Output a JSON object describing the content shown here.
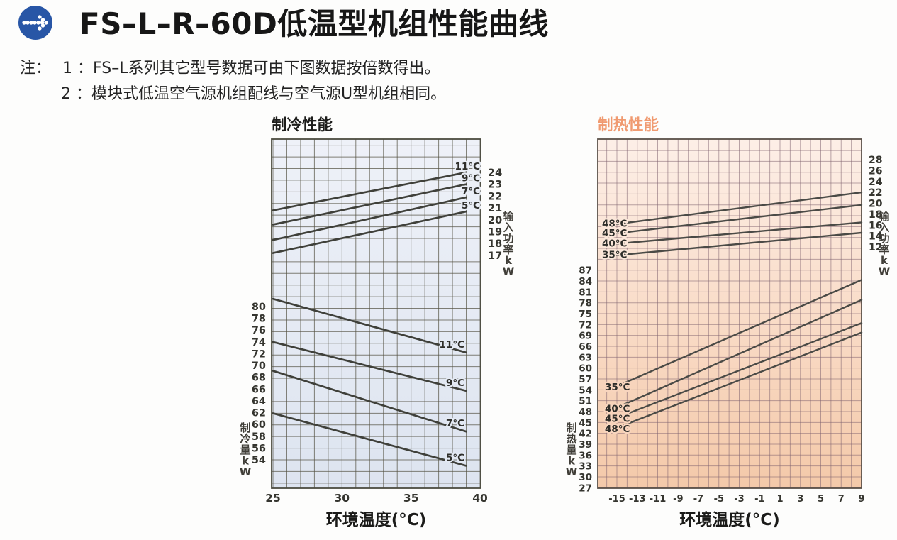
{
  "header": {
    "title": "FS–L–R–60D低温型机组性能曲线",
    "logo_icon": "dotted-arrow-circle-icon",
    "logo_color": "#2856a6",
    "notes_prefix": "注：",
    "note1": "1 ：FS–L系列其它型号数据可由下图数据按倍数得出。",
    "note2": "2 ：模块式低温空气源机组配线与空气源U型机组相同。"
  },
  "chart_data": [
    {
      "id": "cooling",
      "type": "line",
      "title": "制冷性能",
      "title_color": "#1d1d1b",
      "xlabel": "环境温度(°C)",
      "x_range": [
        25,
        40
      ],
      "grid": true,
      "legend_position": "on-curve",
      "bg_colors": [
        "#eef1f8",
        "#dde4f0"
      ],
      "x_ticks": [
        {
          "v": 25,
          "t": "25"
        },
        {
          "v": 30,
          "t": "30"
        },
        {
          "v": 35,
          "t": "35"
        },
        {
          "v": 40,
          "t": "40"
        }
      ],
      "groups": [
        {
          "name": "input_power",
          "axis_label": "输入功率kW",
          "axis_side": "right",
          "axis_ticks": [
            24,
            23,
            22,
            21,
            20,
            19,
            18,
            17
          ],
          "series": [
            {
              "label": "11°C",
              "points": [
                [
                  25,
                  20.8
                ],
                [
                  39,
                  24.0
                ]
              ]
            },
            {
              "label": "9°C",
              "points": [
                [
                  25,
                  19.6
                ],
                [
                  39,
                  23.0
                ]
              ]
            },
            {
              "label": "7°C",
              "points": [
                [
                  25,
                  18.3
                ],
                [
                  39,
                  21.9
                ]
              ]
            },
            {
              "label": "5°C",
              "points": [
                [
                  25,
                  17.2
                ],
                [
                  39,
                  20.7
                ]
              ]
            }
          ]
        },
        {
          "name": "cooling_capacity",
          "axis_label": "制冷量kW",
          "axis_side": "left",
          "axis_ticks": [
            80,
            78,
            76,
            74,
            72,
            70,
            68,
            66,
            64,
            62,
            60,
            58,
            56,
            54
          ],
          "series": [
            {
              "label": "11°C",
              "points": [
                [
                  25,
                  81.3
                ],
                [
                  39,
                  72.2
                ]
              ]
            },
            {
              "label": "9°C",
              "points": [
                [
                  25,
                  74.0
                ],
                [
                  39,
                  65.7
                ]
              ]
            },
            {
              "label": "7°C",
              "points": [
                [
                  25,
                  69.1
                ],
                [
                  39,
                  58.8
                ]
              ]
            },
            {
              "label": "5°C",
              "points": [
                [
                  25,
                  61.9
                ],
                [
                  39,
                  53.0
                ]
              ]
            }
          ]
        }
      ]
    },
    {
      "id": "heating",
      "type": "line",
      "title": "制热性能",
      "title_color": "#f09a70",
      "xlabel": "环境温度(°C)",
      "x_range": [
        -17,
        9
      ],
      "grid": true,
      "legend_position": "on-curve",
      "bg_colors": [
        "#fdefe7",
        "#f9dcc8",
        "#f4c9a9"
      ],
      "x_ticks": [
        {
          "v": -15,
          "t": "-15"
        },
        {
          "v": -13,
          "t": "-13"
        },
        {
          "v": -11,
          "t": "-11"
        },
        {
          "v": -9,
          "t": "-9"
        },
        {
          "v": -7,
          "t": "-7"
        },
        {
          "v": -5,
          "t": "-5"
        },
        {
          "v": -3,
          "t": "-3"
        },
        {
          "v": -1,
          "t": "-1"
        },
        {
          "v": 1,
          "t": "1"
        },
        {
          "v": 3,
          "t": "3"
        },
        {
          "v": 5,
          "t": "5"
        },
        {
          "v": 7,
          "t": "7"
        },
        {
          "v": 9,
          "t": "9"
        }
      ],
      "groups": [
        {
          "name": "input_power",
          "axis_label": "输入功率kW",
          "axis_side": "right",
          "axis_ticks": [
            28,
            26,
            24,
            22,
            20,
            18,
            16,
            14,
            12
          ],
          "series": [
            {
              "label": "48°C",
              "points": [
                [
                  -15,
                  16.2
                ],
                [
                  9,
                  22.0
                ]
              ]
            },
            {
              "label": "45°C",
              "points": [
                [
                  -15,
                  14.5
                ],
                [
                  9,
                  19.7
                ]
              ]
            },
            {
              "label": "40°C",
              "points": [
                [
                  -15,
                  12.6
                ],
                [
                  9,
                  16.5
                ]
              ]
            },
            {
              "label": "35°C",
              "points": [
                [
                  -15,
                  10.5
                ],
                [
                  9,
                  14.6
                ]
              ]
            }
          ]
        },
        {
          "name": "heating_capacity",
          "axis_label": "制热量kW",
          "axis_side": "left",
          "axis_ticks": [
            87,
            84,
            81,
            78,
            75,
            72,
            69,
            66,
            63,
            60,
            57,
            54,
            51,
            48,
            45,
            42,
            39,
            36,
            33,
            30,
            27
          ],
          "series": [
            {
              "label": "35°C",
              "points": [
                [
                  -15,
                  55.0
                ],
                [
                  9,
                  84.3
                ]
              ]
            },
            {
              "label": "40°C",
              "points": [
                [
                  -15,
                  49.1
                ],
                [
                  9,
                  78.8
                ]
              ]
            },
            {
              "label": "45°C",
              "points": [
                [
                  -15,
                  46.3
                ],
                [
                  9,
                  72.4
                ]
              ]
            },
            {
              "label": "48°C",
              "points": [
                [
                  -15,
                  43.5
                ],
                [
                  9,
                  69.8
                ]
              ]
            }
          ]
        }
      ]
    }
  ]
}
